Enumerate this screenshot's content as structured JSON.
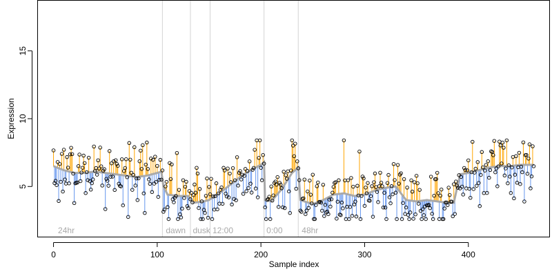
{
  "chart_data": {
    "type": "scatter",
    "title": "",
    "xlabel": "Sample index",
    "ylabel": "Expression",
    "xlim": [
      -15,
      478
    ],
    "ylim": [
      1.3,
      18.7
    ],
    "x_ticks": [
      0,
      100,
      200,
      300,
      400
    ],
    "y_ticks": [
      5,
      10,
      15
    ],
    "grid": false,
    "legend": "none",
    "colors": {
      "above_trend": "#ffa500",
      "below_trend": "#6495ed",
      "trend": "#a9a9a9",
      "point": "#000000",
      "vline": "#d3d3d3",
      "annotation_text": "#a9a9a9"
    },
    "vertical_lines_x": [
      105,
      132,
      151,
      203,
      236
    ],
    "annotations": [
      {
        "text": "24hr",
        "x": 3
      },
      {
        "text": "dawn",
        "x": 107
      },
      {
        "text": "dusk",
        "x": 133
      },
      {
        "text": "12:00",
        "x": 152
      },
      {
        "text": "0:00",
        "x": 204
      },
      {
        "text": "48hr",
        "x": 238
      }
    ],
    "trend_knots": [
      [
        0,
        6.5
      ],
      [
        10,
        6.2
      ],
      [
        20,
        6.0
      ],
      [
        30,
        6.0
      ],
      [
        40,
        6.1
      ],
      [
        50,
        6.0
      ],
      [
        60,
        5.9
      ],
      [
        70,
        5.8
      ],
      [
        80,
        5.7
      ],
      [
        90,
        5.8
      ],
      [
        100,
        6.0
      ],
      [
        104,
        6.1
      ],
      [
        106,
        5.0
      ],
      [
        110,
        4.4
      ],
      [
        120,
        4.3
      ],
      [
        130,
        4.3
      ],
      [
        135,
        3.8
      ],
      [
        145,
        3.9
      ],
      [
        150,
        4.0
      ],
      [
        155,
        4.3
      ],
      [
        160,
        4.5
      ],
      [
        170,
        5.1
      ],
      [
        180,
        5.7
      ],
      [
        190,
        6.2
      ],
      [
        200,
        6.6
      ],
      [
        203,
        6.8
      ],
      [
        204,
        4.0
      ],
      [
        210,
        3.9
      ],
      [
        220,
        4.8
      ],
      [
        230,
        6.0
      ],
      [
        236,
        6.4
      ],
      [
        238,
        4.0
      ],
      [
        250,
        3.7
      ],
      [
        260,
        4.0
      ],
      [
        270,
        4.4
      ],
      [
        280,
        4.5
      ],
      [
        290,
        4.3
      ],
      [
        300,
        4.4
      ],
      [
        310,
        4.7
      ],
      [
        320,
        4.9
      ],
      [
        330,
        5.0
      ],
      [
        340,
        4.0
      ],
      [
        350,
        3.9
      ],
      [
        360,
        4.0
      ],
      [
        370,
        3.9
      ],
      [
        380,
        3.8
      ],
      [
        386,
        3.8
      ],
      [
        392,
        5.9
      ],
      [
        400,
        6.0
      ],
      [
        410,
        6.2
      ],
      [
        420,
        6.4
      ],
      [
        430,
        6.5
      ],
      [
        440,
        6.5
      ],
      [
        450,
        6.6
      ],
      [
        460,
        6.6
      ],
      [
        463,
        6.6
      ]
    ],
    "n_points": 464,
    "point_seed": 20240611,
    "residual_sd": 1.25
  }
}
